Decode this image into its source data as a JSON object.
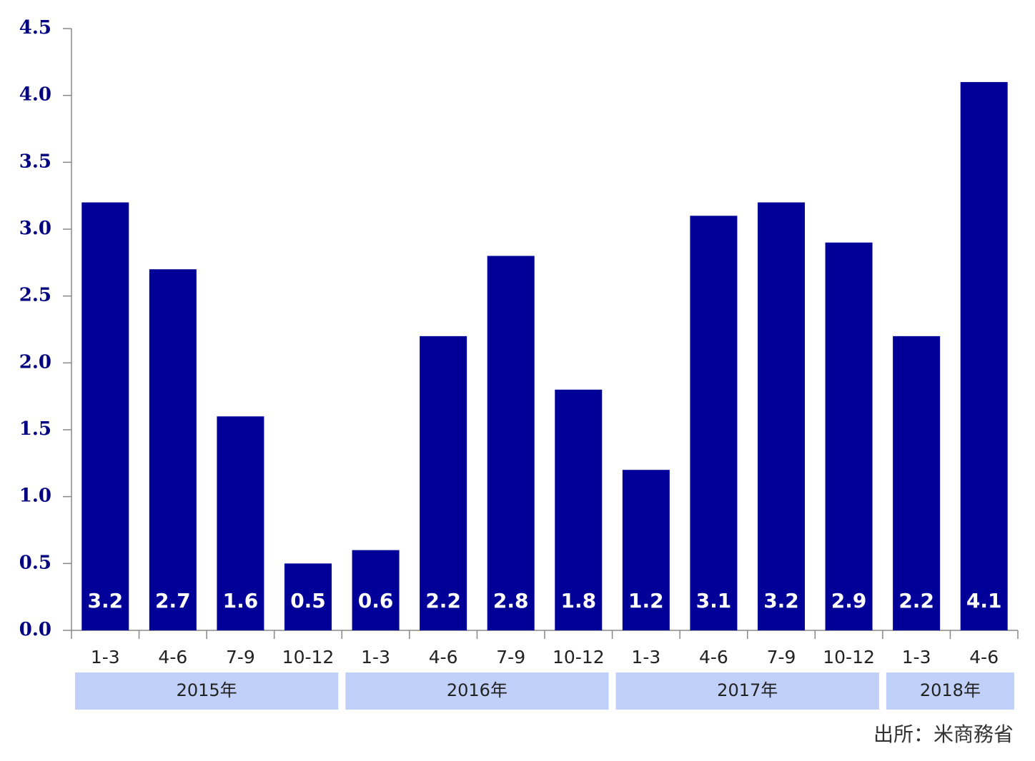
{
  "chart_data": {
    "type": "bar",
    "color": "#000099",
    "groups": [
      {
        "name": "2015年",
        "categories": [
          "1-3",
          "4-6",
          "7-9",
          "10-12"
        ],
        "values": [
          3.2,
          2.7,
          1.6,
          0.5
        ]
      },
      {
        "name": "2016年",
        "categories": [
          "1-3",
          "4-6",
          "7-9",
          "10-12"
        ],
        "values": [
          0.6,
          2.2,
          2.8,
          1.8
        ]
      },
      {
        "name": "2017年",
        "categories": [
          "1-3",
          "4-6",
          "7-9",
          "10-12"
        ],
        "values": [
          1.2,
          3.1,
          3.2,
          2.9
        ]
      },
      {
        "name": "2018年",
        "categories": [
          "1-3",
          "4-6"
        ],
        "values": [
          2.2,
          4.1
        ]
      }
    ],
    "ylim": [
      0,
      4.5
    ],
    "yticks": [
      {
        "value": 0,
        "label": "0.0"
      },
      {
        "value": 0.5,
        "label": "0.5"
      },
      {
        "value": 1,
        "label": "1.0"
      },
      {
        "value": 1.5,
        "label": "1.5"
      },
      {
        "value": 2,
        "label": "2.0"
      },
      {
        "value": 2.5,
        "label": "2.5"
      },
      {
        "value": 3,
        "label": "3.0"
      },
      {
        "value": 3.5,
        "label": "3.5"
      },
      {
        "value": 4,
        "label": "4.0"
      },
      {
        "value": 4.5,
        "label": "4.5"
      }
    ],
    "source": "出所：米商務省"
  }
}
